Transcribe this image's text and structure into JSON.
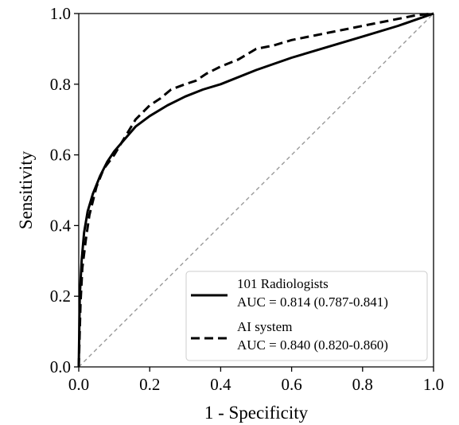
{
  "chart_data": {
    "type": "line",
    "title": "",
    "xlabel": "1 - Specificity",
    "ylabel": "Sensitivity",
    "xlim": [
      0,
      1
    ],
    "ylim": [
      0,
      1
    ],
    "xticks": [
      "0.0",
      "0.2",
      "0.4",
      "0.6",
      "0.8",
      "1.0"
    ],
    "yticks": [
      "0.0",
      "0.2",
      "0.4",
      "0.6",
      "0.8",
      "1.0"
    ],
    "grid": false,
    "legend_position": "bottom-right",
    "chance_line": {
      "style": "dashed",
      "color": "#999999",
      "x": [
        0,
        1
      ],
      "y": [
        0,
        1
      ]
    },
    "series": [
      {
        "name": "101 Radiologists",
        "auc_label": "AUC = 0.814 (0.787-0.841)",
        "style": "solid",
        "color": "#000000",
        "x": [
          0,
          0.003,
          0.008,
          0.015,
          0.025,
          0.04,
          0.06,
          0.08,
          0.1,
          0.13,
          0.16,
          0.2,
          0.25,
          0.3,
          0.35,
          0.4,
          0.5,
          0.6,
          0.7,
          0.8,
          0.9,
          1.0
        ],
        "y": [
          0,
          0.2,
          0.3,
          0.38,
          0.44,
          0.49,
          0.54,
          0.58,
          0.61,
          0.645,
          0.68,
          0.71,
          0.74,
          0.765,
          0.785,
          0.8,
          0.84,
          0.875,
          0.905,
          0.935,
          0.965,
          1.0
        ]
      },
      {
        "name": "AI system",
        "auc_label": "AUC = 0.840 (0.820-0.860)",
        "style": "dashed",
        "color": "#000000",
        "x": [
          0,
          0.005,
          0.01,
          0.02,
          0.03,
          0.05,
          0.07,
          0.1,
          0.13,
          0.16,
          0.2,
          0.23,
          0.26,
          0.3,
          0.33,
          0.36,
          0.4,
          0.45,
          0.5,
          0.55,
          0.6,
          0.65,
          0.7,
          0.75,
          0.8,
          0.85,
          0.9,
          0.95,
          1.0
        ],
        "y": [
          0,
          0.18,
          0.28,
          0.36,
          0.43,
          0.51,
          0.56,
          0.6,
          0.65,
          0.7,
          0.74,
          0.76,
          0.785,
          0.8,
          0.81,
          0.83,
          0.85,
          0.87,
          0.9,
          0.91,
          0.925,
          0.935,
          0.945,
          0.955,
          0.965,
          0.975,
          0.985,
          0.995,
          1.0
        ]
      }
    ]
  }
}
